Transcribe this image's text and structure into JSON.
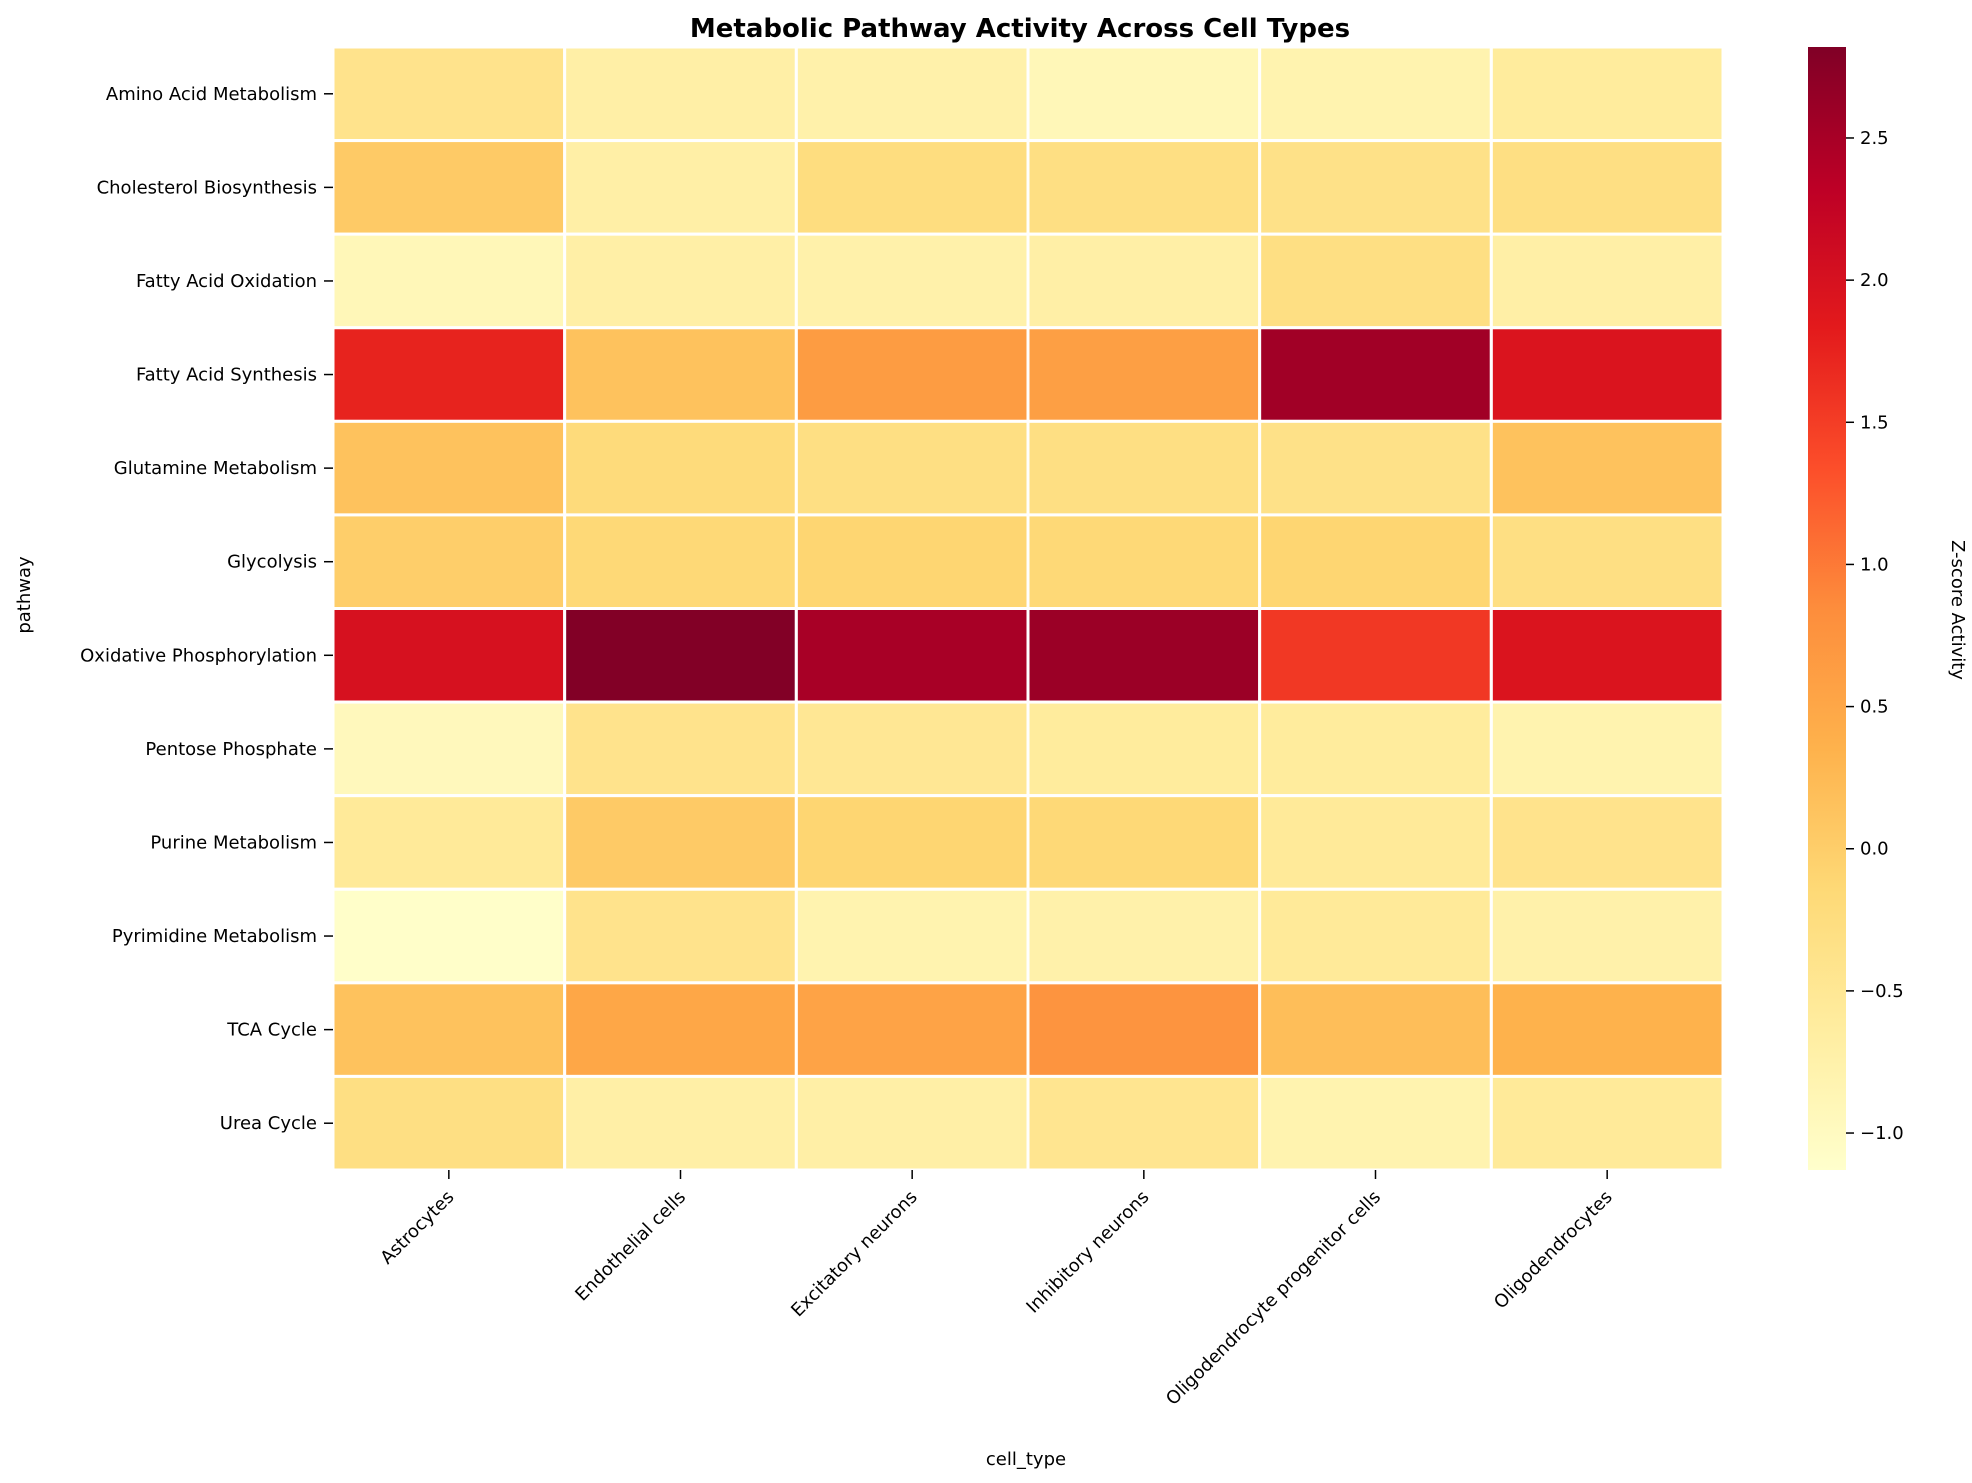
{
  "chart_data": {
    "type": "heatmap",
    "title": "Metabolic Pathway Activity Across Cell Types",
    "xlabel": "cell_type",
    "ylabel": "pathway",
    "colorbar_label": "Z-score Activity",
    "colormap": "YlOrRd",
    "color_range": [
      -1.13,
      2.82
    ],
    "colorbar_ticks": [
      2.5,
      2.0,
      1.5,
      1.0,
      0.5,
      0.0,
      -0.5,
      -1.0
    ],
    "colorbar_tick_labels": [
      "2.5",
      "2.0",
      "1.5",
      "1.0",
      "0.5",
      "0.0",
      "−0.5",
      "−1.0"
    ],
    "x_categories": [
      "Astrocytes",
      "Endothelial cells",
      "Excitatory neurons",
      "Inhibitory neurons",
      "Oligodendrocyte progenitor cells",
      "Oligodendrocytes"
    ],
    "y_categories": [
      "Amino Acid Metabolism",
      "Cholesterol Biosynthesis",
      "Fatty Acid Oxidation",
      "Fatty Acid Synthesis",
      "Glutamine Metabolism",
      "Glycolysis",
      "Oxidative Phosphorylation",
      "Pentose Phosphate",
      "Purine Metabolism",
      "Pyrimidine Metabolism",
      "TCA Cycle",
      "Urea Cycle"
    ],
    "values": [
      [
        -0.4,
        -0.7,
        -0.75,
        -0.9,
        -0.8,
        -0.6
      ],
      [
        0.05,
        -0.7,
        -0.25,
        -0.3,
        -0.35,
        -0.3
      ],
      [
        -0.9,
        -0.7,
        -0.75,
        -0.7,
        -0.3,
        -0.7
      ],
      [
        1.75,
        0.15,
        0.65,
        0.6,
        2.55,
        1.95
      ],
      [
        0.15,
        -0.2,
        -0.3,
        -0.3,
        -0.35,
        0.15
      ],
      [
        0.0,
        -0.15,
        -0.1,
        -0.15,
        -0.1,
        -0.3
      ],
      [
        2.0,
        2.8,
        2.5,
        2.6,
        1.55,
        1.95
      ],
      [
        -0.95,
        -0.4,
        -0.5,
        -0.6,
        -0.6,
        -0.8
      ],
      [
        -0.55,
        0.05,
        -0.1,
        -0.15,
        -0.55,
        -0.4
      ],
      [
        -1.1,
        -0.4,
        -0.8,
        -0.75,
        -0.55,
        -0.75
      ],
      [
        0.15,
        0.5,
        0.55,
        0.75,
        0.2,
        0.35
      ],
      [
        -0.3,
        -0.7,
        -0.7,
        -0.45,
        -0.8,
        -0.55
      ]
    ]
  }
}
